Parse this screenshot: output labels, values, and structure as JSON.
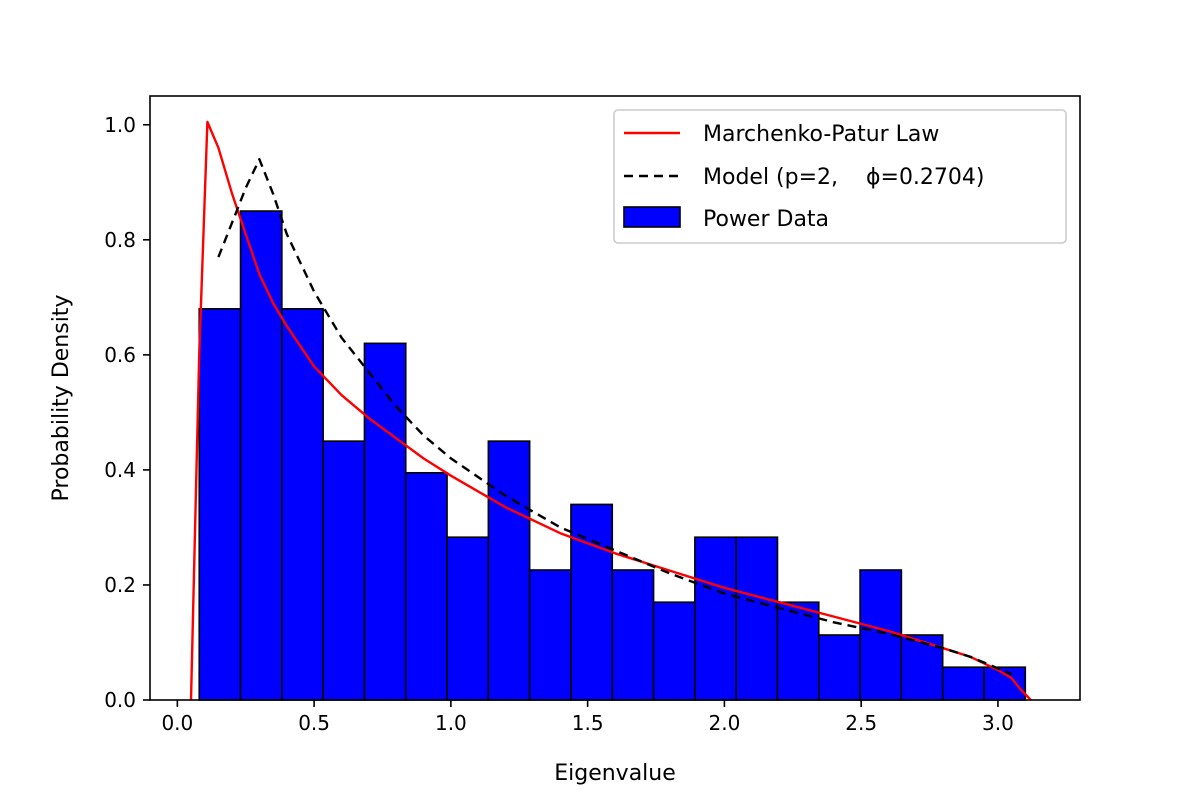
{
  "chart_data": {
    "type": "bar",
    "title": "",
    "xlabel": "Eigenvalue",
    "ylabel": "Probability Density",
    "xlim": [
      -0.1,
      3.3
    ],
    "ylim": [
      0,
      1.05
    ],
    "xticks": [
      "0.0",
      "0.5",
      "1.0",
      "1.5",
      "2.0",
      "2.5",
      "3.0"
    ],
    "xtick_values": [
      0,
      0.5,
      1.0,
      1.5,
      2.0,
      2.5,
      3.0
    ],
    "yticks": [
      "0.0",
      "0.2",
      "0.4",
      "0.6",
      "0.8",
      "1.0"
    ],
    "ytick_values": [
      0,
      0.2,
      0.4,
      0.6,
      0.8,
      1.0
    ],
    "grid": false,
    "legend_position": "top-right",
    "histogram": {
      "name": "Power Data",
      "color": "#0000ff",
      "edge_color": "#000000",
      "bin_edges": [
        0.08,
        0.231,
        0.382,
        0.533,
        0.684,
        0.835,
        0.986,
        1.137,
        1.288,
        1.439,
        1.59,
        1.741,
        1.892,
        2.043,
        2.194,
        2.345,
        2.496,
        2.647,
        2.798,
        2.949,
        3.1
      ],
      "values": [
        0.68,
        0.85,
        0.68,
        0.45,
        0.62,
        0.395,
        0.283,
        0.45,
        0.226,
        0.34,
        0.226,
        0.17,
        0.283,
        0.283,
        0.17,
        0.113,
        0.226,
        0.113,
        0.057,
        0.057
      ]
    },
    "series": [
      {
        "name": "Marchenko-Patur Law",
        "color": "#ff0000",
        "style": "solid",
        "x": [
          0.05,
          0.08,
          0.11,
          0.15,
          0.2,
          0.25,
          0.3,
          0.35,
          0.4,
          0.5,
          0.6,
          0.7,
          0.8,
          0.9,
          1.0,
          1.2,
          1.4,
          1.6,
          1.8,
          2.0,
          2.2,
          2.4,
          2.6,
          2.8,
          2.9,
          3.0,
          3.05,
          3.08,
          3.12
        ],
        "y": [
          0.0,
          0.6,
          1.005,
          0.96,
          0.88,
          0.81,
          0.74,
          0.69,
          0.65,
          0.58,
          0.53,
          0.49,
          0.455,
          0.42,
          0.39,
          0.335,
          0.29,
          0.255,
          0.225,
          0.195,
          0.17,
          0.145,
          0.12,
          0.09,
          0.075,
          0.052,
          0.038,
          0.02,
          0.0
        ]
      },
      {
        "name": "Model (p=2,    ϕ=0.2704)",
        "color": "#000000",
        "style": "dashed",
        "x": [
          0.15,
          0.2,
          0.25,
          0.3,
          0.35,
          0.4,
          0.5,
          0.6,
          0.7,
          0.8,
          0.9,
          1.0,
          1.2,
          1.4,
          1.6,
          1.8,
          2.0,
          2.2,
          2.4,
          2.6,
          2.8,
          2.9,
          3.0,
          3.05
        ],
        "y": [
          0.77,
          0.83,
          0.89,
          0.94,
          0.88,
          0.81,
          0.71,
          0.63,
          0.57,
          0.51,
          0.46,
          0.42,
          0.355,
          0.3,
          0.26,
          0.22,
          0.185,
          0.16,
          0.135,
          0.115,
          0.09,
          0.075,
          0.055,
          0.045
        ]
      }
    ]
  }
}
